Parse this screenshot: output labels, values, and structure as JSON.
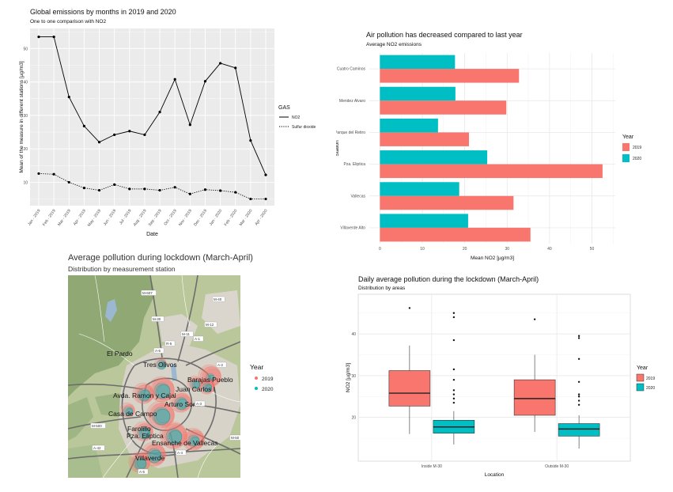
{
  "colors": {
    "y2019": "#f8766d",
    "y2020": "#00bfc4",
    "panel_grey": "#ebebeb",
    "grid": "#ffffff",
    "grid_light": "#e5e5e5"
  },
  "chart_data": [
    {
      "type": "line",
      "title": "Global emissions by months in 2019 and 2020",
      "subtitle": "One to one comparison with NO2",
      "xlabel": "Date",
      "ylabel": "Mean of the measure in different stations [µg/m3]",
      "categories": [
        "Jan - 2019",
        "Feb - 2019",
        "Mar - 2019",
        "Apr - 2019",
        "May - 2019",
        "Jun - 2019",
        "Jul - 2019",
        "Aug - 2019",
        "Sep - 2019",
        "Oct - 2019",
        "Nov - 2019",
        "Dec - 2019",
        "Jan - 2020",
        "Feb - 2020",
        "Mar - 2020",
        "Apr - 2020"
      ],
      "x_display": [
        "Jan - 2019",
        "Feb - 2019",
        "Mar - 2019",
        "Apr - 2019",
        "May - 2019",
        "Jun - 2019",
        "Jul - 2019",
        "Aug - 2019",
        "Sep - 2019",
        "Oct - 2019",
        "Nov - 2019",
        "Dec - 2019",
        "Jan - 2020",
        "Feb - 2020",
        "Mar - 2020",
        "Apr - 2020"
      ],
      "yticks": [
        10,
        20,
        30,
        40,
        50
      ],
      "ylim": [
        3,
        56
      ],
      "legend_title": "GAS",
      "legend_position": "right",
      "series": [
        {
          "name": "NO2",
          "linetype": "solid",
          "values": [
            53.5,
            53.5,
            35.5,
            26.8,
            22.0,
            24.2,
            25.3,
            24.2,
            31.0,
            40.8,
            27.2,
            40.2,
            45.6,
            44.2,
            22.5,
            12.2
          ]
        },
        {
          "name": "Sulfur dioxide",
          "linetype": "dotted",
          "values": [
            12.6,
            12.4,
            10.0,
            8.3,
            7.6,
            9.3,
            8.0,
            8.0,
            7.6,
            8.5,
            6.5,
            7.8,
            7.5,
            7.0,
            5.0,
            5.0
          ]
        }
      ]
    },
    {
      "type": "bar",
      "orientation": "horizontal",
      "title": "Air pollution has decreased compared to last year",
      "subtitle": "Average NO2 emissions",
      "xlabel": "Mean NO2 [µg/m3]",
      "ylabel": "Station",
      "categories": [
        "Cuatro Caminos",
        "Mendez Alvaro",
        "Parque del Retiro",
        "Pza. Eliptica",
        "Vallecas",
        "Villaverde Alto"
      ],
      "xticks": [
        0,
        10,
        20,
        30,
        40,
        50
      ],
      "xlim": [
        -2.5,
        55.5
      ],
      "legend_title": "Year",
      "legend_position": "right",
      "series": [
        {
          "name": "2019",
          "values": [
            32.8,
            29.8,
            21.0,
            52.5,
            31.5,
            35.5
          ]
        },
        {
          "name": "2020",
          "values": [
            17.7,
            17.8,
            13.7,
            25.3,
            18.7,
            20.8
          ]
        }
      ]
    },
    {
      "type": "scatter",
      "title": "Average pollution during lockdown (March-April)",
      "subtitle": "Distribution by measurement station",
      "legend_title": "Year",
      "legend_position": "right",
      "series": [
        {
          "name": "2019"
        },
        {
          "name": "2020"
        }
      ],
      "labels": [
        "El Pardo",
        "Tres Olivos",
        "Barajas Pueblo",
        "Juan Carlos I",
        "Avda. Ramon y Cajal",
        "Arturo Soria",
        "Casa de Campo",
        "Farolillo",
        "Pza. Eliptica",
        "Ensanche de Vallecas",
        "Villaverde"
      ],
      "road_labels": [
        "M-607",
        "M-40",
        "M-30",
        "A-1",
        "A-2",
        "A-3",
        "A-4",
        "A-5",
        "A-6",
        "M-500",
        "M-11",
        "M-12",
        "A-42",
        "M-50",
        "R-5"
      ]
    },
    {
      "type": "box",
      "title": "Daily average pollution during the lockdown (March-April)",
      "subtitle": "Distribution by areas",
      "xlabel": "Location",
      "ylabel": "NO2 [µg/m3]",
      "categories": [
        "Inside M-30",
        "Outside M-30"
      ],
      "yticks": [
        20,
        30,
        40
      ],
      "ylim": [
        9.5,
        49.5
      ],
      "legend_title": "Year",
      "legend_position": "right",
      "series": [
        {
          "name": "2019",
          "boxes": [
            {
              "q1": 22.7,
              "median": 25.8,
              "q3": 31.2,
              "lo": 16.0,
              "hi": 37.2,
              "outliers": [
                46.2
              ]
            },
            {
              "q1": 20.5,
              "median": 24.5,
              "q3": 29.0,
              "lo": 16.5,
              "hi": 35.0,
              "outliers": [
                43.5
              ]
            }
          ]
        },
        {
          "name": "2020",
          "boxes": [
            {
              "q1": 16.2,
              "median": 17.7,
              "q3": 19.3,
              "lo": 13.5,
              "hi": 21.5,
              "outliers": [
                23.5,
                24.5,
                25.5,
                26.5,
                29.0,
                31.5,
                38.5,
                44.0,
                45.0
              ]
            },
            {
              "q1": 15.5,
              "median": 17.2,
              "q3": 18.5,
              "lo": 12.5,
              "hi": 20.5,
              "outliers": [
                23.0,
                24.0,
                25.0,
                25.5,
                28.5,
                34.0,
                39.0,
                39.5
              ]
            }
          ]
        }
      ]
    }
  ]
}
